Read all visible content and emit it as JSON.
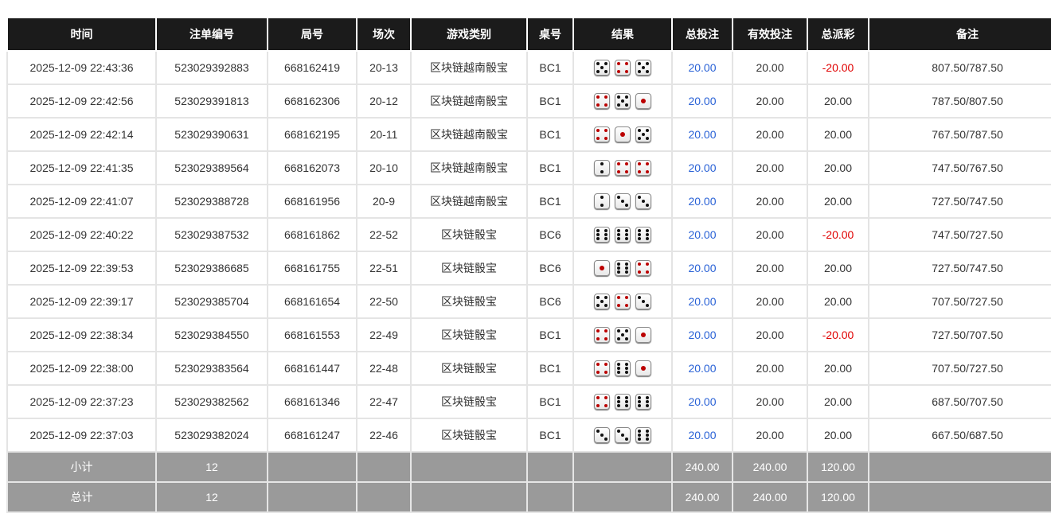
{
  "headers": [
    "时间",
    "注单编号",
    "局号",
    "场次",
    "游戏类别",
    "桌号",
    "结果",
    "总投注",
    "有效投注",
    "总派彩",
    "备注"
  ],
  "rows": [
    {
      "time": "2025-12-09 22:43:36",
      "bet_id": "523029392883",
      "round": "668162419",
      "session": "20-13",
      "game": "区块链越南骰宝",
      "table": "BC1",
      "dice": [
        5,
        4,
        5
      ],
      "total_bet": "20.00",
      "valid_bet": "20.00",
      "payout": "-20.00",
      "note": "807.50/787.50"
    },
    {
      "time": "2025-12-09 22:42:56",
      "bet_id": "523029391813",
      "round": "668162306",
      "session": "20-12",
      "game": "区块链越南骰宝",
      "table": "BC1",
      "dice": [
        4,
        5,
        1
      ],
      "total_bet": "20.00",
      "valid_bet": "20.00",
      "payout": "20.00",
      "note": "787.50/807.50"
    },
    {
      "time": "2025-12-09 22:42:14",
      "bet_id": "523029390631",
      "round": "668162195",
      "session": "20-11",
      "game": "区块链越南骰宝",
      "table": "BC1",
      "dice": [
        4,
        1,
        5
      ],
      "total_bet": "20.00",
      "valid_bet": "20.00",
      "payout": "20.00",
      "note": "767.50/787.50"
    },
    {
      "time": "2025-12-09 22:41:35",
      "bet_id": "523029389564",
      "round": "668162073",
      "session": "20-10",
      "game": "区块链越南骰宝",
      "table": "BC1",
      "dice": [
        2,
        4,
        4
      ],
      "total_bet": "20.00",
      "valid_bet": "20.00",
      "payout": "20.00",
      "note": "747.50/767.50"
    },
    {
      "time": "2025-12-09 22:41:07",
      "bet_id": "523029388728",
      "round": "668161956",
      "session": "20-9",
      "game": "区块链越南骰宝",
      "table": "BC1",
      "dice": [
        2,
        3,
        3
      ],
      "total_bet": "20.00",
      "valid_bet": "20.00",
      "payout": "20.00",
      "note": "727.50/747.50"
    },
    {
      "time": "2025-12-09 22:40:22",
      "bet_id": "523029387532",
      "round": "668161862",
      "session": "22-52",
      "game": "区块链骰宝",
      "table": "BC6",
      "dice": [
        6,
        6,
        6
      ],
      "total_bet": "20.00",
      "valid_bet": "20.00",
      "payout": "-20.00",
      "note": "747.50/727.50"
    },
    {
      "time": "2025-12-09 22:39:53",
      "bet_id": "523029386685",
      "round": "668161755",
      "session": "22-51",
      "game": "区块链骰宝",
      "table": "BC6",
      "dice": [
        1,
        6,
        4
      ],
      "total_bet": "20.00",
      "valid_bet": "20.00",
      "payout": "20.00",
      "note": "727.50/747.50"
    },
    {
      "time": "2025-12-09 22:39:17",
      "bet_id": "523029385704",
      "round": "668161654",
      "session": "22-50",
      "game": "区块链骰宝",
      "table": "BC6",
      "dice": [
        5,
        4,
        3
      ],
      "total_bet": "20.00",
      "valid_bet": "20.00",
      "payout": "20.00",
      "note": "707.50/727.50"
    },
    {
      "time": "2025-12-09 22:38:34",
      "bet_id": "523029384550",
      "round": "668161553",
      "session": "22-49",
      "game": "区块链骰宝",
      "table": "BC1",
      "dice": [
        4,
        5,
        1
      ],
      "total_bet": "20.00",
      "valid_bet": "20.00",
      "payout": "-20.00",
      "note": "727.50/707.50"
    },
    {
      "time": "2025-12-09 22:38:00",
      "bet_id": "523029383564",
      "round": "668161447",
      "session": "22-48",
      "game": "区块链骰宝",
      "table": "BC1",
      "dice": [
        4,
        6,
        1
      ],
      "total_bet": "20.00",
      "valid_bet": "20.00",
      "payout": "20.00",
      "note": "707.50/727.50"
    },
    {
      "time": "2025-12-09 22:37:23",
      "bet_id": "523029382562",
      "round": "668161346",
      "session": "22-47",
      "game": "区块链骰宝",
      "table": "BC1",
      "dice": [
        4,
        6,
        6
      ],
      "total_bet": "20.00",
      "valid_bet": "20.00",
      "payout": "20.00",
      "note": "687.50/707.50"
    },
    {
      "time": "2025-12-09 22:37:03",
      "bet_id": "523029382024",
      "round": "668161247",
      "session": "22-46",
      "game": "区块链骰宝",
      "table": "BC1",
      "dice": [
        3,
        3,
        6
      ],
      "total_bet": "20.00",
      "valid_bet": "20.00",
      "payout": "20.00",
      "note": "667.50/687.50"
    }
  ],
  "subtotal": {
    "label": "小计",
    "count": "12",
    "total_bet": "240.00",
    "valid_bet": "240.00",
    "payout": "120.00"
  },
  "total": {
    "label": "总计",
    "count": "12",
    "total_bet": "240.00",
    "valid_bet": "240.00",
    "payout": "120.00"
  },
  "colors": {
    "bet_blue": "#2a62d6",
    "loss_red": "#e00000",
    "header_bg": "#1b1b1b",
    "summary_bg": "#9a9a9a",
    "die_red_pip": "#b00000"
  }
}
